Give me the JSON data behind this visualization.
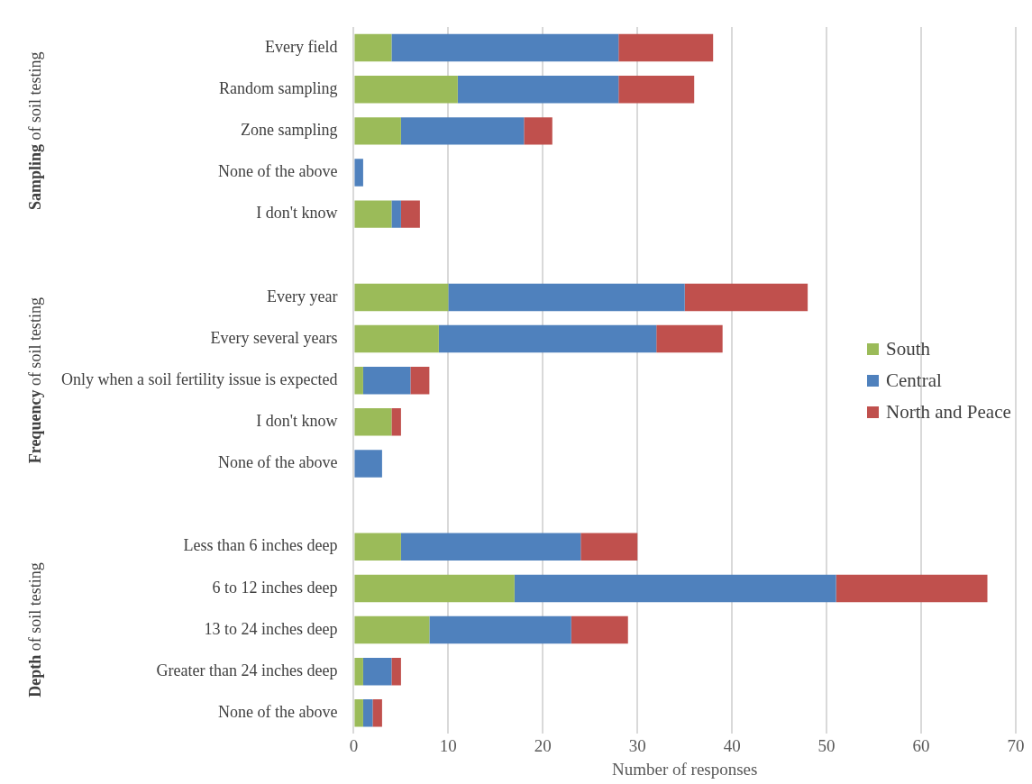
{
  "chart_data": {
    "type": "bar",
    "orientation": "horizontal",
    "stacked": true,
    "categories": [
      "Every field",
      "Random sampling",
      "Zone sampling",
      "None of the above",
      "I don't know",
      null,
      "Every year",
      "Every several years",
      "Only when a soil fertility issue is expected",
      "I don't know",
      "None of the above",
      null,
      "Less than 6 inches deep",
      "6 to 12 inches deep",
      "13 to 24 inches deep",
      "Greater than 24 inches deep",
      "None of the above"
    ],
    "series": [
      {
        "name": "South",
        "color": "#9bbb59",
        "values": [
          4,
          11,
          5,
          0,
          4,
          null,
          10,
          9,
          1,
          4,
          0,
          null,
          5,
          17,
          8,
          1,
          1
        ]
      },
      {
        "name": "Central",
        "color": "#4f81bd",
        "values": [
          24,
          17,
          13,
          1,
          1,
          null,
          25,
          23,
          5,
          0,
          3,
          null,
          19,
          34,
          15,
          3,
          1
        ]
      },
      {
        "name": "North and Peace",
        "color": "#c0504d",
        "values": [
          10,
          8,
          3,
          0,
          2,
          null,
          13,
          7,
          2,
          1,
          0,
          null,
          6,
          16,
          6,
          1,
          1
        ]
      }
    ],
    "xlabel": "Number of responses",
    "xlim": [
      0,
      70
    ],
    "xticks": [
      0,
      10,
      20,
      30,
      40,
      50,
      60,
      70
    ],
    "grid": "x",
    "legend": "right",
    "annotations": [
      "Sampling of soil testing",
      "Frequency of soil testing",
      "Depth of soil testing"
    ]
  }
}
